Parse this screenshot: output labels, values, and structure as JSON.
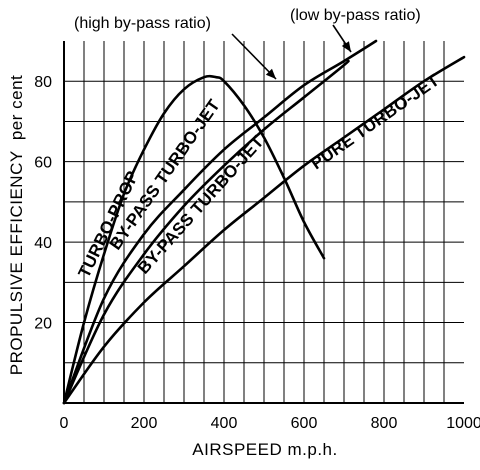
{
  "chart_data": {
    "type": "line",
    "xlabel": "AIRSPEED m.p.h.",
    "ylabel": "PROPULSIVE EFFICIENCY  per cent",
    "xlim": [
      0,
      1000
    ],
    "ylim": [
      0,
      90
    ],
    "grid": true,
    "x_ticks": [
      0,
      200,
      400,
      600,
      800,
      1000
    ],
    "y_ticks": [
      20,
      40,
      60,
      80
    ],
    "series": [
      {
        "name": "TURBO-PROP",
        "x": [
          0,
          50,
          100,
          150,
          200,
          250,
          300,
          350,
          380,
          400,
          450,
          500,
          550,
          600,
          650
        ],
        "y": [
          0,
          20,
          37,
          52,
          63,
          72,
          78,
          81,
          81,
          80,
          74,
          66,
          56,
          45,
          36
        ]
      },
      {
        "name": "BY-PASS TURBO-JET",
        "x": [
          0,
          100,
          200,
          300,
          400,
          500,
          600,
          700,
          780
        ],
        "y": [
          0,
          26,
          42,
          53,
          63,
          71,
          79,
          85,
          90
        ]
      },
      {
        "name": "BY-PASS TURBO-JET",
        "x": [
          0,
          100,
          200,
          300,
          400,
          500,
          600,
          700,
          710
        ],
        "y": [
          0,
          22,
          37,
          49,
          59,
          68,
          76,
          84,
          85
        ]
      },
      {
        "name": "PURE TURBO-JET",
        "x": [
          0,
          100,
          200,
          300,
          400,
          500,
          600,
          700,
          800,
          900,
          1000
        ],
        "y": [
          0,
          14,
          25,
          34,
          43,
          51,
          59,
          66,
          73,
          80,
          86
        ]
      }
    ],
    "annotations": [
      {
        "text": "(high by-pass ratio)",
        "points_to_series": 2
      },
      {
        "text": "(low by-pass ratio)",
        "points_to_series": 1
      }
    ]
  }
}
